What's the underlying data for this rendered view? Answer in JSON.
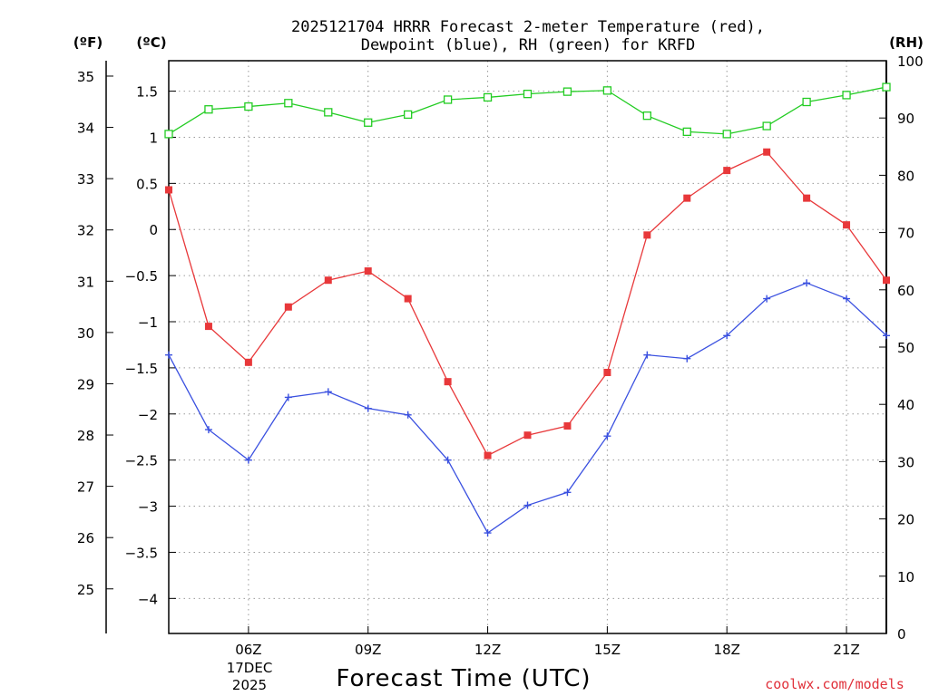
{
  "chart_data": {
    "type": "line",
    "title_lines": [
      "2025121704 HRRR Forecast 2-meter Temperature (red),",
      "Dewpoint (blue), RH (green) for KRFD"
    ],
    "xlabel": "Forecast Time (UTC)",
    "x_hours": [
      4,
      5,
      6,
      7,
      8,
      9,
      10,
      11,
      12,
      13,
      14,
      15,
      16,
      17,
      18,
      19,
      20,
      21,
      22
    ],
    "x_ticks": [
      {
        "hour": 6,
        "label": "06Z"
      },
      {
        "hour": 9,
        "label": "09Z"
      },
      {
        "hour": 12,
        "label": "12Z"
      },
      {
        "hour": 15,
        "label": "15Z"
      },
      {
        "hour": 18,
        "label": "18Z"
      },
      {
        "hour": 21,
        "label": "21Z"
      }
    ],
    "date_label": [
      "17DEC",
      "2025"
    ],
    "xlim": [
      4,
      22
    ],
    "axes": {
      "fahrenheit": {
        "unit_label": "(ºF)",
        "range": [
          24.13,
          35.3
        ],
        "ticks": [
          25,
          26,
          27,
          28,
          29,
          30,
          31,
          32,
          33,
          34,
          35
        ]
      },
      "celsius": {
        "unit_label": "(ºC)",
        "range": [
          -4.38,
          1.83
        ],
        "ticks": [
          "1.5",
          "1",
          "0.5",
          "0",
          "−0.5",
          "−1",
          "−1.5",
          "−2",
          "−2.5",
          "−3",
          "−3.5",
          "−4"
        ]
      },
      "rh": {
        "unit_label": "(RH)",
        "range": [
          0,
          100
        ],
        "ticks": [
          0,
          10,
          20,
          30,
          40,
          50,
          60,
          70,
          80,
          90,
          100
        ]
      }
    },
    "series": [
      {
        "name": "Temperature",
        "axis": "celsius",
        "color": "#e8383a",
        "marker": "filled-square",
        "values": [
          0.43,
          -1.05,
          -1.44,
          -0.84,
          -0.55,
          -0.45,
          -0.75,
          -1.65,
          -2.45,
          -2.23,
          -2.13,
          -1.55,
          -0.06,
          0.34,
          0.64,
          0.84,
          0.34,
          0.05,
          -0.55
        ]
      },
      {
        "name": "Dewpoint",
        "axis": "celsius",
        "color": "#3a50e0",
        "marker": "plus",
        "values": [
          -1.36,
          -2.17,
          -2.5,
          -1.82,
          -1.76,
          -1.94,
          -2.01,
          -2.5,
          -3.29,
          -2.99,
          -2.85,
          -2.24,
          -1.36,
          -1.4,
          -1.15,
          -0.75,
          -0.58,
          -0.75,
          -1.15
        ]
      },
      {
        "name": "RH",
        "axis": "rh",
        "color": "#22cc22",
        "marker": "open-square",
        "values": [
          87.2,
          91.5,
          92.0,
          92.6,
          91.0,
          89.2,
          90.6,
          93.2,
          93.6,
          94.2,
          94.6,
          94.8,
          90.4,
          87.6,
          87.2,
          88.6,
          92.8,
          94.0,
          95.4
        ]
      }
    ],
    "grid": true,
    "credit": "coolwx.com/models"
  }
}
